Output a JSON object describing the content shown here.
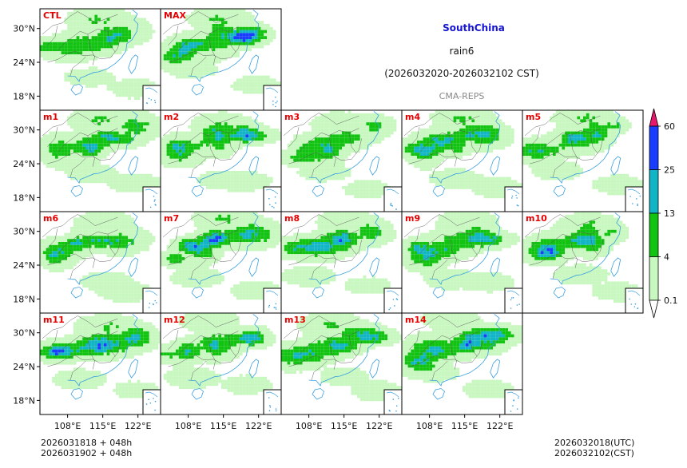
{
  "title": {
    "region": "SouthChina",
    "variable": "rain6",
    "period": "(2026032020-2026032102 CST)",
    "system": "CMA-REPS"
  },
  "colors": {
    "region_title": "#1414d2",
    "panel_label": "#e60000",
    "system_label": "#888888",
    "coast": "#3a9fe0",
    "border": "#555555",
    "bins": [
      "#ffffff",
      "#c8f7c0",
      "#12c312",
      "#12b5c6",
      "#1a3cff",
      "#e8176e"
    ]
  },
  "chart_data": {
    "type": "heatmap",
    "description_of_fields": "6-hour accumulated precipitation, ensemble members",
    "panels": [
      {
        "label": "CTL",
        "intensity": 1.0,
        "seed": 3
      },
      {
        "label": "MAX",
        "intensity": 1.9,
        "seed": 7
      },
      {
        "label": "m1",
        "intensity": 1.0,
        "seed": 11
      },
      {
        "label": "m2",
        "intensity": 1.2,
        "seed": 13
      },
      {
        "label": "m3",
        "intensity": 1.1,
        "seed": 17
      },
      {
        "label": "m4",
        "intensity": 1.15,
        "seed": 19
      },
      {
        "label": "m5",
        "intensity": 1.2,
        "seed": 23
      },
      {
        "label": "m6",
        "intensity": 1.05,
        "seed": 29
      },
      {
        "label": "m7",
        "intensity": 1.2,
        "seed": 31
      },
      {
        "label": "m8",
        "intensity": 1.0,
        "seed": 37
      },
      {
        "label": "m9",
        "intensity": 1.15,
        "seed": 41
      },
      {
        "label": "m10",
        "intensity": 1.0,
        "seed": 43
      },
      {
        "label": "m11",
        "intensity": 1.35,
        "seed": 47
      },
      {
        "label": "m12",
        "intensity": 1.0,
        "seed": 53
      },
      {
        "label": "m13",
        "intensity": 1.4,
        "seed": 59
      },
      {
        "label": "m14",
        "intensity": 1.2,
        "seed": 61
      }
    ],
    "xaxis": {
      "ticks": [
        108,
        115,
        122
      ],
      "tick_labels": [
        "108°E",
        "115°E",
        "122°E"
      ],
      "range": [
        102.5,
        126.5
      ]
    },
    "yaxis": {
      "ticks": [
        30,
        24,
        18
      ],
      "tick_labels": [
        "30°N",
        "24°N",
        "18°N"
      ],
      "range": [
        15.5,
        33.5
      ]
    },
    "colorbar": {
      "levels": [
        0.1,
        4,
        13,
        25,
        60
      ],
      "level_labels": [
        "0.1",
        "4",
        "13",
        "25",
        "60"
      ],
      "extend": "both"
    }
  },
  "footer": {
    "left_line1": "2026031818  +  048h",
    "left_line2": "2026031902  +  048h",
    "right_line1": "2026032018(UTC)",
    "right_line2": "2026032102(CST)"
  }
}
